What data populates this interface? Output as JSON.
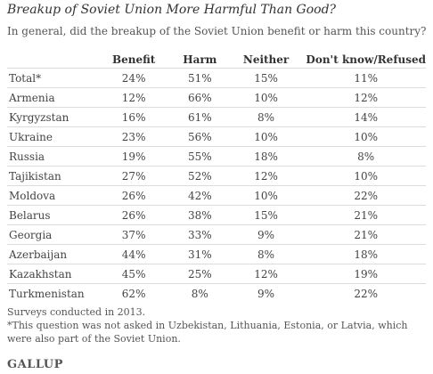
{
  "title": "Breakup of Soviet Union More Harmful Than Good?",
  "subtitle": "In general, did the breakup of the Soviet Union benefit or harm this country?",
  "table": {
    "columns": [
      "",
      "Benefit",
      "Harm",
      "Neither",
      "Don't know/Refused"
    ],
    "rows": [
      {
        "label": "Total*",
        "benefit": "24%",
        "harm": "51%",
        "neither": "15%",
        "dk": "11%"
      },
      {
        "label": "Armenia",
        "benefit": "12%",
        "harm": "66%",
        "neither": "10%",
        "dk": "12%"
      },
      {
        "label": "Kyrgyzstan",
        "benefit": "16%",
        "harm": "61%",
        "neither": "8%",
        "dk": "14%"
      },
      {
        "label": "Ukraine",
        "benefit": "23%",
        "harm": "56%",
        "neither": "10%",
        "dk": "10%"
      },
      {
        "label": "Russia",
        "benefit": "19%",
        "harm": "55%",
        "neither": "18%",
        "dk": "8%"
      },
      {
        "label": "Tajikistan",
        "benefit": "27%",
        "harm": "52%",
        "neither": "12%",
        "dk": "10%"
      },
      {
        "label": "Moldova",
        "benefit": "26%",
        "harm": "42%",
        "neither": "10%",
        "dk": "22%"
      },
      {
        "label": "Belarus",
        "benefit": "26%",
        "harm": "38%",
        "neither": "15%",
        "dk": "21%"
      },
      {
        "label": "Georgia",
        "benefit": "37%",
        "harm": "33%",
        "neither": "9%",
        "dk": "21%"
      },
      {
        "label": "Azerbaijan",
        "benefit": "44%",
        "harm": "31%",
        "neither": "8%",
        "dk": "18%"
      },
      {
        "label": "Kazakhstan",
        "benefit": "45%",
        "harm": "25%",
        "neither": "12%",
        "dk": "19%"
      },
      {
        "label": "Turkmenistan",
        "benefit": "62%",
        "harm": "8%",
        "neither": "9%",
        "dk": "22%"
      }
    ]
  },
  "notes": [
    "Surveys conducted in 2013.",
    "*This question was not asked in Uzbekistan, Lithuania, Estonia, or Latvia, which were also part of the Soviet Union."
  ],
  "logo": "GALLUP"
}
